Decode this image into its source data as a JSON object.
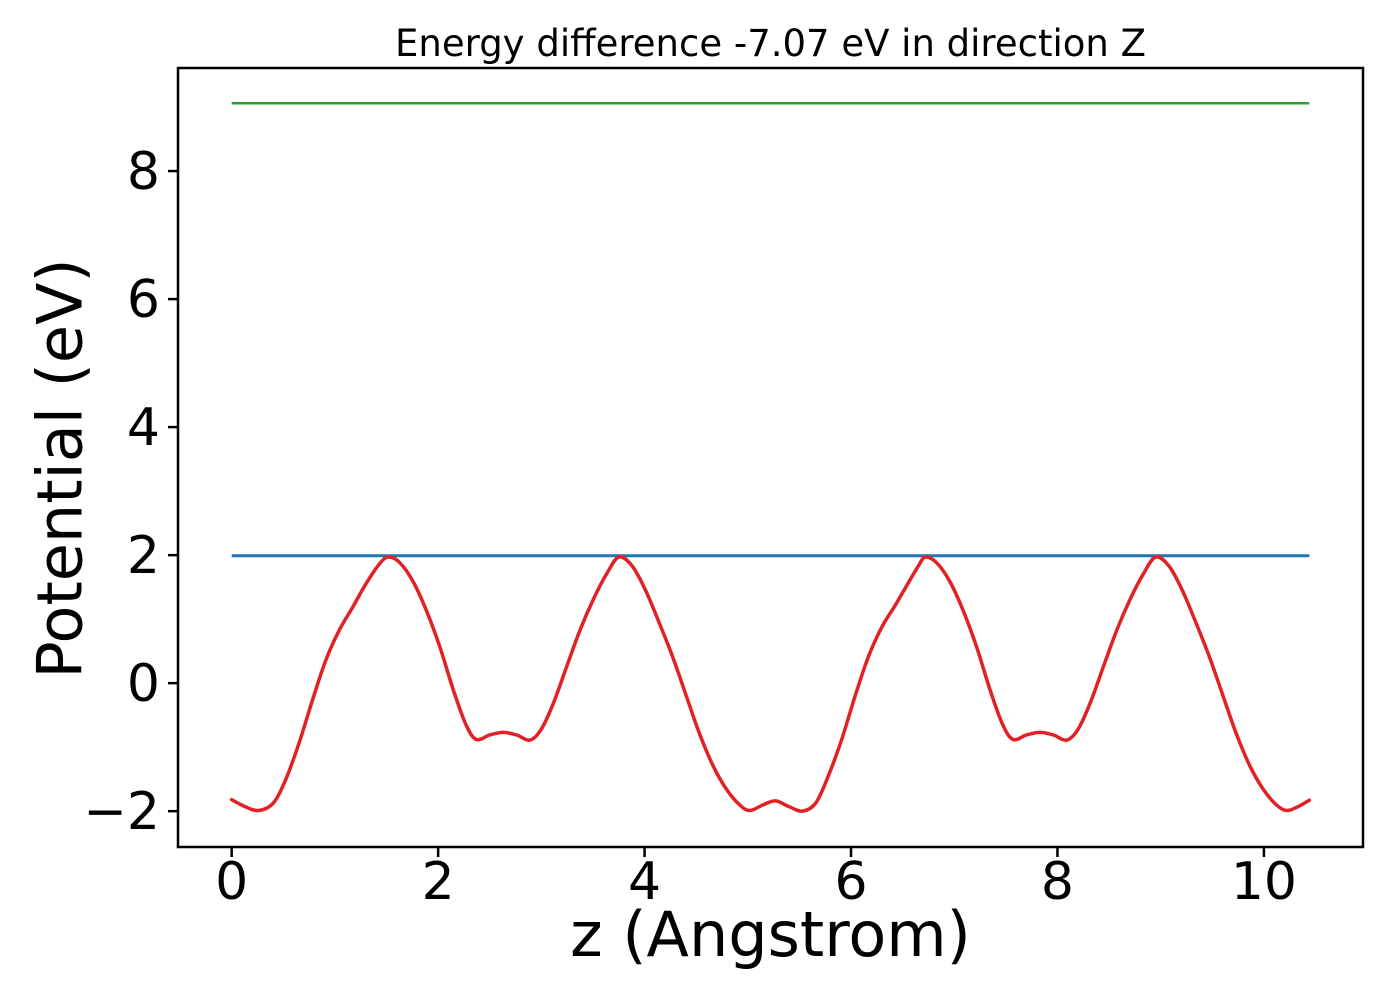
{
  "figure": {
    "background": "#ffffff",
    "frame_color": "#000000",
    "text_color": "#000000"
  },
  "chart_data": {
    "type": "line",
    "title": "Energy difference -7.07 eV in direction Z",
    "xlabel": "z (Angstrom)",
    "ylabel": "Potential (eV)",
    "energy_difference_eV": -7.07,
    "direction": "Z",
    "xlim": [
      -0.52,
      10.96
    ],
    "ylim": [
      -2.56,
      9.61
    ],
    "xticks": [
      0,
      2,
      4,
      6,
      8,
      10
    ],
    "xtick_labels": [
      "0",
      "2",
      "4",
      "6",
      "8",
      "10"
    ],
    "yticks": [
      -2,
      0,
      2,
      4,
      6,
      8
    ],
    "ytick_labels": [
      "−2",
      "0",
      "2",
      "4",
      "6",
      "8"
    ],
    "grid": false,
    "legend_position": "none",
    "series": [
      {
        "name": "vacuum-level-line",
        "kind": "hline",
        "color": "#2ca02c",
        "line_width": 2.5,
        "x_range": [
          0.0,
          10.44
        ],
        "value": 9.06
      },
      {
        "name": "average-potential-line",
        "kind": "hline",
        "color": "#1f77b4",
        "line_width": 3,
        "x_range": [
          0.0,
          10.44
        ],
        "value": 1.99
      },
      {
        "name": "planar-averaged-potential-curve",
        "kind": "curve",
        "color": "#e02126",
        "line_width": 3.5,
        "points": [
          [
            0.0,
            -1.82
          ],
          [
            0.13,
            -1.93
          ],
          [
            0.26,
            -1.99
          ],
          [
            0.4,
            -1.88
          ],
          [
            0.52,
            -1.52
          ],
          [
            0.65,
            -0.95
          ],
          [
            0.78,
            -0.28
          ],
          [
            0.91,
            0.35
          ],
          [
            1.04,
            0.82
          ],
          [
            1.17,
            1.18
          ],
          [
            1.3,
            1.55
          ],
          [
            1.43,
            1.86
          ],
          [
            1.52,
            1.97
          ],
          [
            1.63,
            1.88
          ],
          [
            1.76,
            1.58
          ],
          [
            1.89,
            1.12
          ],
          [
            2.02,
            0.55
          ],
          [
            2.15,
            -0.12
          ],
          [
            2.27,
            -0.65
          ],
          [
            2.37,
            -0.88
          ],
          [
            2.5,
            -0.81
          ],
          [
            2.63,
            -0.77
          ],
          [
            2.76,
            -0.81
          ],
          [
            2.89,
            -0.89
          ],
          [
            3.0,
            -0.72
          ],
          [
            3.12,
            -0.3
          ],
          [
            3.25,
            0.28
          ],
          [
            3.38,
            0.85
          ],
          [
            3.51,
            1.33
          ],
          [
            3.63,
            1.7
          ],
          [
            3.75,
            1.97
          ],
          [
            3.88,
            1.83
          ],
          [
            4.01,
            1.45
          ],
          [
            4.14,
            0.95
          ],
          [
            4.27,
            0.42
          ],
          [
            4.4,
            -0.18
          ],
          [
            4.53,
            -0.78
          ],
          [
            4.66,
            -1.28
          ],
          [
            4.79,
            -1.65
          ],
          [
            4.92,
            -1.9
          ],
          [
            5.02,
            -1.99
          ],
          [
            5.15,
            -1.9
          ],
          [
            5.27,
            -1.84
          ],
          [
            5.4,
            -1.93
          ],
          [
            5.53,
            -2.0
          ],
          [
            5.66,
            -1.87
          ],
          [
            5.78,
            -1.45
          ],
          [
            5.91,
            -0.88
          ],
          [
            6.04,
            -0.2
          ],
          [
            6.17,
            0.42
          ],
          [
            6.3,
            0.88
          ],
          [
            6.43,
            1.22
          ],
          [
            6.56,
            1.58
          ],
          [
            6.66,
            1.85
          ],
          [
            6.72,
            1.97
          ],
          [
            6.83,
            1.88
          ],
          [
            6.96,
            1.58
          ],
          [
            7.09,
            1.12
          ],
          [
            7.22,
            0.55
          ],
          [
            7.35,
            -0.12
          ],
          [
            7.47,
            -0.65
          ],
          [
            7.57,
            -0.88
          ],
          [
            7.7,
            -0.81
          ],
          [
            7.83,
            -0.77
          ],
          [
            7.96,
            -0.81
          ],
          [
            8.09,
            -0.89
          ],
          [
            8.2,
            -0.72
          ],
          [
            8.32,
            -0.3
          ],
          [
            8.45,
            0.28
          ],
          [
            8.58,
            0.85
          ],
          [
            8.71,
            1.33
          ],
          [
            8.83,
            1.7
          ],
          [
            8.95,
            1.97
          ],
          [
            9.08,
            1.83
          ],
          [
            9.21,
            1.45
          ],
          [
            9.34,
            0.95
          ],
          [
            9.47,
            0.42
          ],
          [
            9.6,
            -0.18
          ],
          [
            9.73,
            -0.78
          ],
          [
            9.86,
            -1.28
          ],
          [
            9.99,
            -1.65
          ],
          [
            10.12,
            -1.9
          ],
          [
            10.22,
            -1.99
          ],
          [
            10.33,
            -1.93
          ],
          [
            10.44,
            -1.83
          ]
        ]
      }
    ]
  }
}
